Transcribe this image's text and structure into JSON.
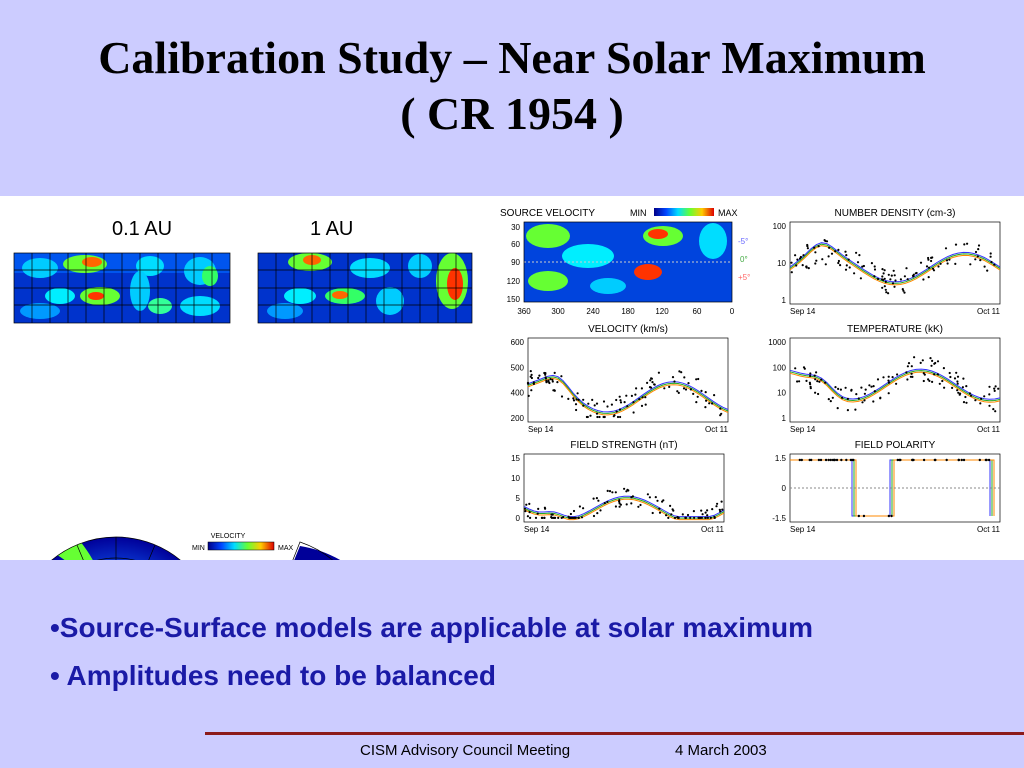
{
  "title": {
    "line1": "Calibration Study – Near Solar Maximum",
    "line2": "( CR 1954 )"
  },
  "simulation": {
    "label_inner": "0.1 AU",
    "label_outer": "1 AU",
    "colorbar": {
      "title": "VELOCITY",
      "min": "MIN",
      "max": "MAX"
    }
  },
  "observations": {
    "source_velocity": {
      "title": "SOURCE VELOCITY",
      "min": "MIN",
      "max": "MAX",
      "y_ticks": [
        "30",
        "60",
        "90",
        "120",
        "150"
      ],
      "x_ticks": [
        "360",
        "300",
        "240",
        "180",
        "120",
        "60",
        "0"
      ],
      "offsets": [
        {
          "text": "-5°",
          "color": "#6666ff"
        },
        {
          "text": "0°",
          "color": "#44aa44"
        },
        {
          "text": "+5°",
          "color": "#ff6666"
        }
      ]
    },
    "panels": [
      {
        "title": "NUMBER DENSITY (cm-3)",
        "y_ticks": [
          "100",
          "10",
          "1"
        ],
        "x_start": "Sep 14",
        "x_end": "Oct 11"
      },
      {
        "title": "VELOCITY (km/s)",
        "y_ticks": [
          "600",
          "500",
          "400",
          "200"
        ],
        "x_start": "Sep 14",
        "x_end": "Oct 11"
      },
      {
        "title": "TEMPERATURE (kK)",
        "y_ticks": [
          "1000",
          "100",
          "10",
          "1"
        ],
        "x_start": "Sep 14",
        "x_end": "Oct 11"
      },
      {
        "title": "FIELD STRENGTH (nT)",
        "y_ticks": [
          "15",
          "10",
          "5",
          "0"
        ],
        "x_start": "Sep 14",
        "x_end": "Oct 11"
      },
      {
        "title": "FIELD POLARITY",
        "y_ticks": [
          "1.5",
          "0",
          "-1.5"
        ],
        "x_start": "Sep 14",
        "x_end": "Oct 11"
      }
    ]
  },
  "bullets": [
    "•Source-Surface models are applicable at solar maximum",
    "• Amplitudes need to be balanced"
  ],
  "footer": {
    "meeting": "CISM Advisory Council Meeting",
    "date": "4 March 2003"
  },
  "colors": {
    "background": "#ccccff",
    "bullet_text": "#1a1aa6",
    "footer_rule": "#8b1a1a"
  }
}
